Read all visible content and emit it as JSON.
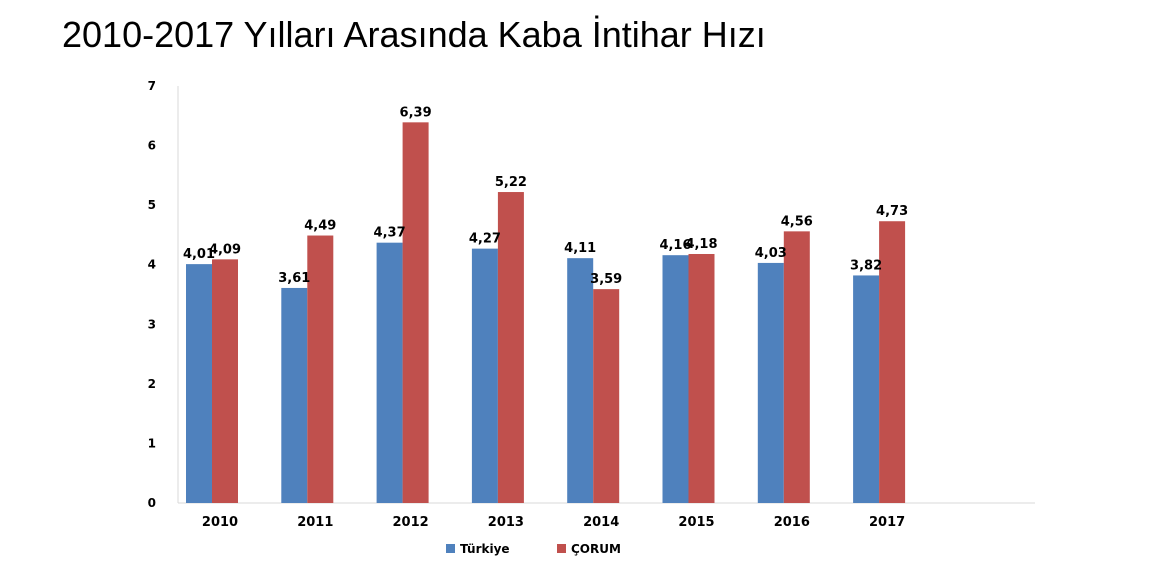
{
  "title": "2010-2017 Yılları Arasında Kaba İntihar Hızı",
  "chart_data": {
    "type": "bar",
    "title": "2010-2017 Yılları Arasında Kaba İntihar Hızı",
    "categories": [
      "2010",
      "2011",
      "2012",
      "2013",
      "2014",
      "2015",
      "2016",
      "2017"
    ],
    "series": [
      {
        "name": "Türkiye",
        "color": "#4f81bd",
        "values": [
          4.01,
          3.61,
          4.37,
          4.27,
          4.11,
          4.16,
          4.03,
          3.82
        ],
        "labels": [
          "4,01",
          "3,61",
          "4,37",
          "4,27",
          "4,11",
          "4,16",
          "4,03",
          "3,82"
        ]
      },
      {
        "name": "ÇORUM",
        "color": "#c0504d",
        "values": [
          4.09,
          4.49,
          6.39,
          5.22,
          3.59,
          4.18,
          4.56,
          4.73
        ],
        "labels": [
          "4,09",
          "4,49",
          "6,39",
          "5,22",
          "3,59",
          "4,18",
          "4,56",
          "4,73"
        ]
      }
    ],
    "yticks": [
      "0",
      "1",
      "2",
      "3",
      "4",
      "5",
      "6",
      "7"
    ],
    "ylim": [
      0,
      7
    ],
    "xlabel": "",
    "ylabel": "",
    "grid": false,
    "legend_position": "bottom"
  }
}
